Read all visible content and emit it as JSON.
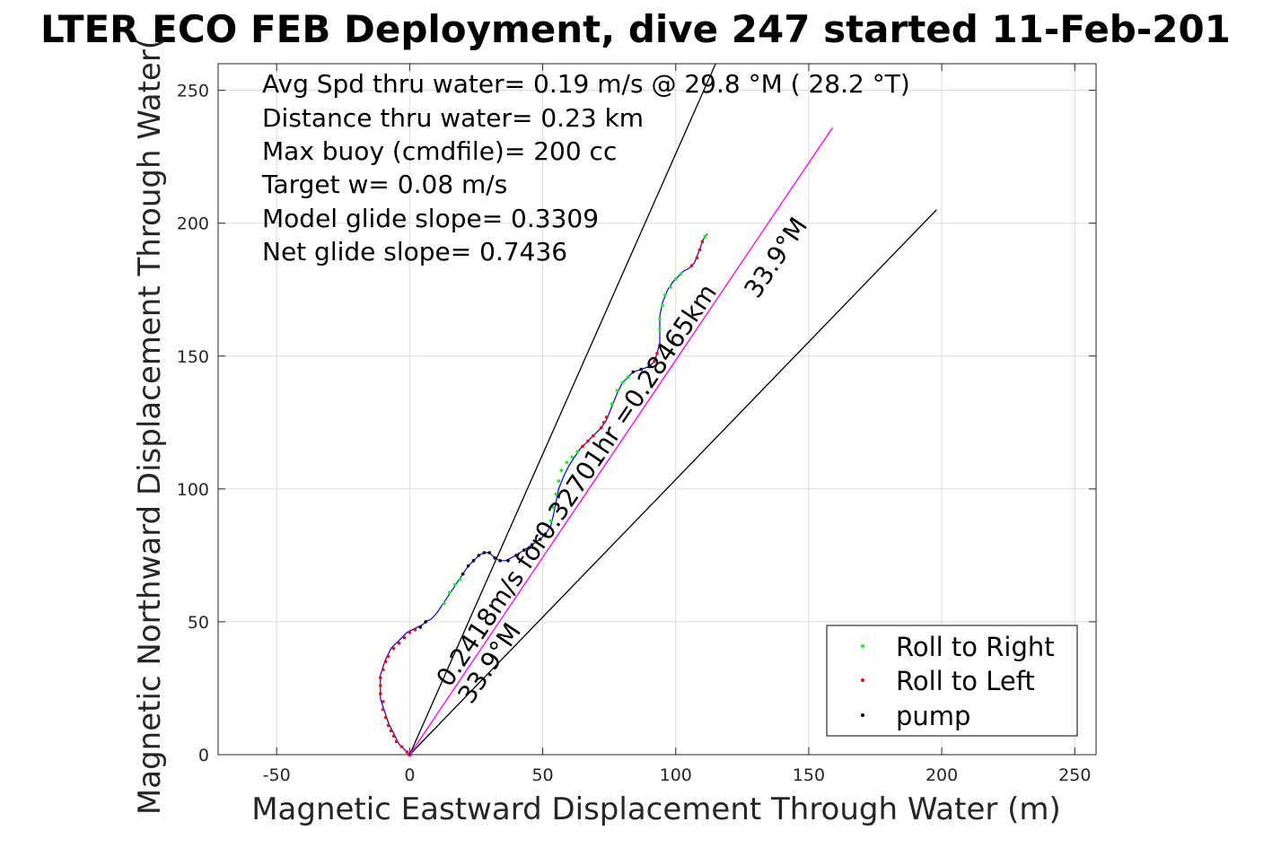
{
  "chart_data": {
    "type": "scatter",
    "title": "LTER ECO FEB Deployment, dive 247 started 11-Feb-201",
    "xlabel": "Magnetic Eastward Displacement Through Water (m)",
    "ylabel": "Magnetic Northward Displacement Through Water(",
    "xlim": [
      -72,
      258
    ],
    "ylim": [
      0,
      260
    ],
    "xticks": [
      "-50",
      "0",
      "50",
      "100",
      "150",
      "200",
      "250"
    ],
    "yticks": [
      "0",
      "50",
      "100",
      "150",
      "200",
      "250"
    ],
    "grid": true,
    "legend_position": "bottom-right",
    "stats": [
      "Avg Spd thru water=  0.19 m/s @  29.8 °M ( 28.2 °T)",
      "Distance thru water=  0.23 km",
      "Max buoy (cmdfile)= 200 cc",
      "Target w= 0.08 m/s",
      "Model glide slope= 0.3309",
      "Net glide slope= 0.7436"
    ],
    "annotations": {
      "current": "0.2418m/s for0.32701hr =0.28465km",
      "heading_low": "33.9°M",
      "heading_high": "33.9°M"
    },
    "legend": [
      {
        "label": "Roll to Right",
        "color": "#00ff00"
      },
      {
        "label": "Roll to Left",
        "color": "#ff0000"
      },
      {
        "label": "pump",
        "color": "#000000"
      }
    ],
    "colors": {
      "track": "#0000ff",
      "current": "#ff00ff",
      "heading_lines": "#000000"
    },
    "reference_lines": [
      {
        "name": "heading-line-steep",
        "from": [
          0,
          0
        ],
        "to": [
          115,
          260
        ]
      },
      {
        "name": "heading-line-shallow",
        "from": [
          0,
          0
        ],
        "to": [
          198,
          205
        ]
      },
      {
        "name": "current-vector",
        "from": [
          0,
          0
        ],
        "to": [
          159,
          236
        ]
      }
    ],
    "track": [
      [
        0,
        0
      ],
      [
        -2,
        2
      ],
      [
        -4,
        4
      ],
      [
        -5,
        6
      ],
      [
        -6,
        8
      ],
      [
        -7,
        10
      ],
      [
        -8,
        12
      ],
      [
        -9,
        15
      ],
      [
        -10,
        18
      ],
      [
        -11,
        21
      ],
      [
        -11,
        24
      ],
      [
        -11,
        27
      ],
      [
        -11,
        30
      ],
      [
        -10,
        33
      ],
      [
        -9,
        36
      ],
      [
        -8,
        38
      ],
      [
        -7,
        40
      ],
      [
        -5,
        42
      ],
      [
        -3,
        44
      ],
      [
        -1,
        46
      ],
      [
        1,
        47
      ],
      [
        3,
        48
      ],
      [
        5,
        49
      ],
      [
        6,
        50
      ],
      [
        8,
        51
      ],
      [
        10,
        53
      ],
      [
        12,
        56
      ],
      [
        14,
        59
      ],
      [
        16,
        62
      ],
      [
        18,
        65
      ],
      [
        20,
        68
      ],
      [
        22,
        71
      ],
      [
        24,
        73
      ],
      [
        26,
        75
      ],
      [
        28,
        76
      ],
      [
        30,
        76
      ],
      [
        31,
        75
      ],
      [
        32,
        74
      ],
      [
        34,
        73
      ],
      [
        36,
        73
      ],
      [
        38,
        74
      ],
      [
        40,
        75
      ],
      [
        43,
        77
      ],
      [
        46,
        79
      ],
      [
        49,
        81
      ],
      [
        51,
        83
      ],
      [
        53,
        86
      ],
      [
        54,
        90
      ],
      [
        55,
        95
      ],
      [
        56,
        100
      ],
      [
        58,
        105
      ],
      [
        60,
        109
      ],
      [
        62,
        112
      ],
      [
        64,
        115
      ],
      [
        66,
        117
      ],
      [
        68,
        119
      ],
      [
        70,
        121
      ],
      [
        72,
        123
      ],
      [
        74,
        126
      ],
      [
        76,
        131
      ],
      [
        78,
        136
      ],
      [
        80,
        140
      ],
      [
        82,
        142
      ],
      [
        84,
        144
      ],
      [
        87,
        145
      ],
      [
        90,
        146
      ],
      [
        92,
        148
      ],
      [
        93,
        151
      ],
      [
        94,
        155
      ],
      [
        94,
        160
      ],
      [
        94,
        165
      ],
      [
        95,
        170
      ],
      [
        97,
        175
      ],
      [
        99,
        178
      ],
      [
        101,
        180
      ],
      [
        103,
        182
      ],
      [
        105,
        183
      ],
      [
        107,
        185
      ],
      [
        109,
        190
      ],
      [
        110,
        193
      ],
      [
        111,
        195
      ],
      [
        112,
        196
      ]
    ],
    "roll_right": [
      [
        13,
        57
      ],
      [
        15,
        61
      ],
      [
        17,
        64
      ],
      [
        19,
        66
      ],
      [
        53,
        88
      ],
      [
        54,
        93
      ],
      [
        55,
        98
      ],
      [
        56,
        103
      ],
      [
        57,
        107
      ],
      [
        59,
        110
      ],
      [
        61,
        112
      ],
      [
        63,
        114
      ],
      [
        76,
        132
      ],
      [
        78,
        137
      ],
      [
        80,
        140
      ],
      [
        82,
        142
      ],
      [
        94,
        160
      ],
      [
        94,
        164
      ],
      [
        95,
        169
      ],
      [
        96,
        173
      ],
      [
        98,
        176
      ],
      [
        100,
        179
      ],
      [
        102,
        181
      ],
      [
        111,
        195
      ]
    ],
    "roll_left": [
      [
        -1,
        1
      ],
      [
        -3,
        3
      ],
      [
        -5,
        5
      ],
      [
        -6,
        7
      ],
      [
        -7,
        9
      ],
      [
        -8,
        11
      ],
      [
        -9,
        14
      ],
      [
        -10,
        17
      ],
      [
        -10,
        20
      ],
      [
        -11,
        23
      ],
      [
        -11,
        26
      ],
      [
        -11,
        29
      ],
      [
        -10,
        32
      ],
      [
        -9,
        35
      ],
      [
        -8,
        37
      ],
      [
        -6,
        40
      ],
      [
        -4,
        42
      ],
      [
        -2,
        44
      ],
      [
        0,
        46
      ],
      [
        2,
        47
      ],
      [
        65,
        116
      ],
      [
        67,
        118
      ],
      [
        69,
        120
      ],
      [
        72,
        123
      ],
      [
        73,
        125
      ],
      [
        74,
        127
      ],
      [
        92,
        148
      ],
      [
        93,
        151
      ],
      [
        94,
        154
      ],
      [
        106,
        184
      ],
      [
        108,
        187
      ],
      [
        109,
        190
      ],
      [
        110,
        193
      ]
    ],
    "pump": [
      [
        0,
        0
      ],
      [
        4,
        48
      ],
      [
        6,
        50
      ],
      [
        20,
        68
      ],
      [
        22,
        71
      ],
      [
        24,
        73
      ],
      [
        26,
        75
      ],
      [
        28,
        76
      ],
      [
        30,
        76
      ],
      [
        32,
        74
      ],
      [
        34,
        73
      ],
      [
        37,
        73
      ],
      [
        40,
        75
      ],
      [
        43,
        77
      ],
      [
        46,
        79
      ],
      [
        49,
        81
      ],
      [
        51,
        83
      ],
      [
        84,
        144
      ],
      [
        87,
        145
      ],
      [
        90,
        146
      ]
    ]
  }
}
